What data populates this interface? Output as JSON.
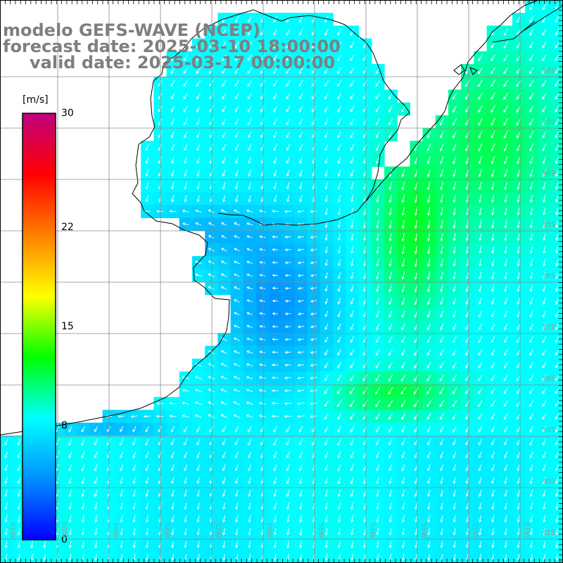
{
  "title": {
    "model": "modelo GEFS-WAVE (NCEP)",
    "forecast": "forecast date: 2025-03-10 18:00:00",
    "valid": "valid date: 2025-03-17 00:00:00"
  },
  "colorbar": {
    "unit": "[m/s]",
    "min": 0,
    "max": 30,
    "labels": [
      "30",
      "22",
      "15",
      "8",
      "0"
    ],
    "stops": [
      "#0000ff",
      "#0090ff",
      "#00ffff",
      "#00ff00",
      "#ffff00",
      "#ff8000",
      "#ff0000",
      "#c00080"
    ]
  },
  "map": {
    "lon_range": [
      -61,
      -50
    ],
    "lat_range": [
      -41,
      -31
    ],
    "lat_labels": [
      "32S",
      "33S",
      "34S",
      "35S",
      "36S",
      "37S",
      "38S",
      "39S",
      "40S",
      "41S"
    ],
    "lon_labels": [
      "61W",
      "60W",
      "59W",
      "58W",
      "57W",
      "56W",
      "55W",
      "54W",
      "53W",
      "52W",
      "51W"
    ],
    "land_color": "#ffffff",
    "coast_color": "#000000",
    "grid_color": "#8a8a8a",
    "vector_color": "#ffffff"
  }
}
